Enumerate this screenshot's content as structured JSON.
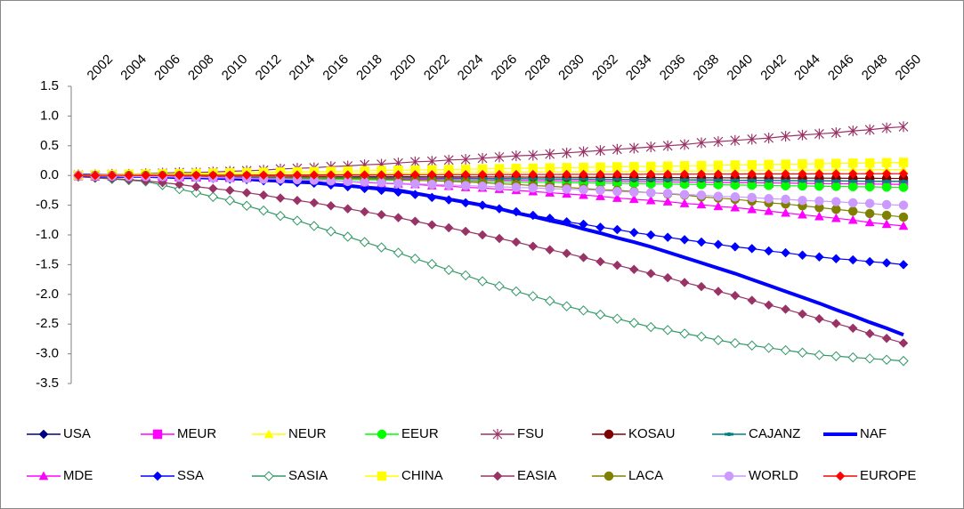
{
  "chart_data": {
    "type": "line",
    "x": [
      2001,
      2002,
      2003,
      2004,
      2005,
      2006,
      2007,
      2008,
      2009,
      2010,
      2011,
      2012,
      2013,
      2014,
      2015,
      2016,
      2017,
      2018,
      2019,
      2020,
      2021,
      2022,
      2023,
      2024,
      2025,
      2026,
      2027,
      2028,
      2029,
      2030,
      2031,
      2032,
      2033,
      2034,
      2035,
      2036,
      2037,
      2038,
      2039,
      2040,
      2041,
      2042,
      2043,
      2044,
      2045,
      2046,
      2047,
      2048,
      2049,
      2050
    ],
    "xlim": [
      2001,
      2050
    ],
    "xticks": [
      2002,
      2004,
      2006,
      2008,
      2010,
      2012,
      2014,
      2016,
      2018,
      2020,
      2022,
      2024,
      2026,
      2028,
      2030,
      2032,
      2034,
      2036,
      2038,
      2040,
      2042,
      2044,
      2046,
      2048,
      2050
    ],
    "ylim": [
      -3.5,
      1.5
    ],
    "yticks": [
      1.5,
      {
        "value": 1,
        "label": "1.0"
      },
      0.5,
      {
        "value": 0,
        "label": "0.0"
      },
      -0.5,
      {
        "value": -1,
        "label": "-1.0"
      },
      -1.5,
      {
        "value": -2,
        "label": "-2.0"
      },
      -2.5,
      {
        "value": -3,
        "label": "-3.0"
      },
      -3.5
    ],
    "grid": false,
    "legend": "bottom",
    "series": [
      {
        "name": "USA",
        "color": "#000080",
        "marker": "diamond",
        "values": [
          -0.002,
          -0.004,
          -0.006,
          -0.008,
          -0.01,
          -0.012,
          -0.014,
          -0.016,
          -0.018,
          -0.02,
          -0.022,
          -0.024,
          -0.026,
          -0.028,
          -0.03,
          -0.032,
          -0.034,
          -0.036,
          -0.038,
          -0.04,
          -0.042,
          -0.044,
          -0.046,
          -0.048,
          -0.05,
          -0.052,
          -0.054,
          -0.056,
          -0.058,
          -0.06,
          -0.062,
          -0.064,
          -0.066,
          -0.068,
          -0.07,
          -0.072,
          -0.074,
          -0.076,
          -0.078,
          -0.08,
          -0.082,
          -0.084,
          -0.086,
          -0.088,
          -0.09,
          -0.092,
          -0.094,
          -0.096,
          -0.098,
          -0.1
        ]
      },
      {
        "name": "MEUR",
        "color": "#ff00ff",
        "marker": "square",
        "values": [
          -0.003,
          -0.006,
          -0.009,
          -0.012,
          -0.015,
          -0.018,
          -0.021,
          -0.024,
          -0.027,
          -0.03,
          -0.033,
          -0.036,
          -0.039,
          -0.042,
          -0.045,
          -0.048,
          -0.051,
          -0.054,
          -0.057,
          -0.06,
          -0.063,
          -0.066,
          -0.069,
          -0.072,
          -0.075,
          -0.078,
          -0.081,
          -0.084,
          -0.087,
          -0.09,
          -0.093,
          -0.096,
          -0.099,
          -0.102,
          -0.105,
          -0.108,
          -0.111,
          -0.114,
          -0.117,
          -0.12,
          -0.123,
          -0.126,
          -0.129,
          -0.132,
          -0.135,
          -0.138,
          -0.141,
          -0.144,
          -0.147,
          -0.15
        ]
      },
      {
        "name": "NEUR",
        "color": "#ffff00",
        "marker": "triangle",
        "values": [
          0.002,
          0.004,
          0.006,
          0.008,
          0.01,
          0.012,
          0.014,
          0.016,
          0.018,
          0.02,
          0.022,
          0.024,
          0.026,
          0.028,
          0.03,
          0.032,
          0.034,
          0.036,
          0.038,
          0.04,
          0.042,
          0.044,
          0.046,
          0.048,
          0.05,
          0.052,
          0.054,
          0.056,
          0.058,
          0.06,
          0.062,
          0.064,
          0.066,
          0.068,
          0.07,
          0.072,
          0.074,
          0.076,
          0.078,
          0.08,
          0.082,
          0.084,
          0.086,
          0.088,
          0.09,
          0.092,
          0.094,
          0.096,
          0.098,
          0.1
        ]
      },
      {
        "name": "EEUR",
        "color": "#00ff00",
        "marker": "circle",
        "values": [
          -0.004,
          -0.008,
          -0.012,
          -0.016,
          -0.02,
          -0.024,
          -0.028,
          -0.032,
          -0.036,
          -0.04,
          -0.044,
          -0.048,
          -0.052,
          -0.056,
          -0.06,
          -0.064,
          -0.068,
          -0.072,
          -0.076,
          -0.08,
          -0.084,
          -0.088,
          -0.092,
          -0.096,
          -0.1,
          -0.104,
          -0.108,
          -0.112,
          -0.116,
          -0.12,
          -0.124,
          -0.128,
          -0.132,
          -0.136,
          -0.14,
          -0.144,
          -0.148,
          -0.152,
          -0.156,
          -0.16,
          -0.164,
          -0.168,
          -0.172,
          -0.176,
          -0.18,
          -0.184,
          -0.188,
          -0.192,
          -0.196,
          -0.2
        ]
      },
      {
        "name": "FSU",
        "color": "#993366",
        "marker": "star",
        "values": [
          0.01,
          0.01,
          0.02,
          0.02,
          0.03,
          0.04,
          0.05,
          0.05,
          0.06,
          0.07,
          0.08,
          0.09,
          0.11,
          0.12,
          0.13,
          0.15,
          0.16,
          0.18,
          0.19,
          0.21,
          0.23,
          0.24,
          0.26,
          0.27,
          0.29,
          0.31,
          0.33,
          0.34,
          0.36,
          0.38,
          0.4,
          0.42,
          0.44,
          0.46,
          0.48,
          0.5,
          0.52,
          0.55,
          0.57,
          0.59,
          0.61,
          0.63,
          0.66,
          0.68,
          0.7,
          0.72,
          0.75,
          0.77,
          0.8,
          0.82
        ]
      },
      {
        "name": "KOSAU",
        "color": "#800000",
        "marker": "circle",
        "values": [
          -0.001,
          -0.002,
          -0.003,
          -0.004,
          -0.005,
          -0.006,
          -0.007,
          -0.008,
          -0.009,
          -0.01,
          -0.011,
          -0.012,
          -0.013,
          -0.014,
          -0.015,
          -0.016,
          -0.017,
          -0.018,
          -0.019,
          -0.02,
          -0.021,
          -0.022,
          -0.023,
          -0.024,
          -0.025,
          -0.026,
          -0.027,
          -0.028,
          -0.029,
          -0.03,
          -0.031,
          -0.032,
          -0.033,
          -0.034,
          -0.035,
          -0.036,
          -0.037,
          -0.038,
          -0.039,
          -0.04,
          -0.041,
          -0.042,
          -0.043,
          -0.044,
          -0.045,
          -0.046,
          -0.047,
          -0.048,
          -0.049,
          -0.05
        ]
      },
      {
        "name": "CAJANZ",
        "color": "#008080",
        "marker": "plus",
        "values": [
          -0.002,
          -0.004,
          -0.006,
          -0.008,
          -0.01,
          -0.012,
          -0.014,
          -0.016,
          -0.018,
          -0.02,
          -0.022,
          -0.024,
          -0.026,
          -0.028,
          -0.03,
          -0.032,
          -0.034,
          -0.036,
          -0.038,
          -0.04,
          -0.042,
          -0.044,
          -0.046,
          -0.048,
          -0.05,
          -0.052,
          -0.054,
          -0.056,
          -0.058,
          -0.06,
          -0.062,
          -0.064,
          -0.066,
          -0.068,
          -0.07,
          -0.072,
          -0.074,
          -0.076,
          -0.078,
          -0.08,
          -0.082,
          -0.084,
          -0.086,
          -0.088,
          -0.09,
          -0.092,
          -0.094,
          -0.096,
          -0.098,
          -0.1
        ]
      },
      {
        "name": "NAF",
        "color": "#0000ff",
        "values": [
          0,
          0,
          -0.01,
          -0.01,
          -0.01,
          -0.02,
          -0.03,
          -0.03,
          -0.04,
          -0.05,
          -0.06,
          -0.08,
          -0.09,
          -0.11,
          -0.12,
          -0.15,
          -0.17,
          -0.2,
          -0.22,
          -0.25,
          -0.3,
          -0.35,
          -0.4,
          -0.45,
          -0.5,
          -0.56,
          -0.63,
          -0.69,
          -0.76,
          -0.82,
          -0.9,
          -0.97,
          -1.05,
          -1.12,
          -1.2,
          -1.29,
          -1.38,
          -1.47,
          -1.56,
          -1.65,
          -1.75,
          -1.85,
          -1.95,
          -2.05,
          -2.15,
          -2.26,
          -2.36,
          -2.47,
          -2.57,
          -2.68
        ]
      },
      {
        "name": "MDE",
        "color": "#ff00ff",
        "marker": "triangle",
        "values": [
          0,
          0,
          -0.01,
          -0.01,
          -0.01,
          -0.01,
          -0.02,
          -0.02,
          -0.03,
          -0.03,
          -0.04,
          -0.05,
          -0.06,
          -0.07,
          -0.08,
          -0.09,
          -0.1,
          -0.12,
          -0.13,
          -0.14,
          -0.15,
          -0.17,
          -0.18,
          -0.2,
          -0.21,
          -0.23,
          -0.25,
          -0.27,
          -0.29,
          -0.31,
          -0.33,
          -0.35,
          -0.38,
          -0.4,
          -0.42,
          -0.44,
          -0.47,
          -0.49,
          -0.52,
          -0.54,
          -0.57,
          -0.6,
          -0.63,
          -0.66,
          -0.69,
          -0.72,
          -0.75,
          -0.79,
          -0.82,
          -0.85
        ]
      },
      {
        "name": "SSA",
        "color": "#0000ff",
        "marker": "diamond",
        "values": [
          0,
          -0.01,
          -0.01,
          -0.02,
          -0.02,
          -0.03,
          -0.04,
          -0.04,
          -0.05,
          -0.06,
          -0.07,
          -0.09,
          -0.1,
          -0.12,
          -0.13,
          -0.16,
          -0.19,
          -0.22,
          -0.25,
          -0.28,
          -0.32,
          -0.37,
          -0.41,
          -0.46,
          -0.5,
          -0.56,
          -0.61,
          -0.67,
          -0.72,
          -0.78,
          -0.82,
          -0.87,
          -0.91,
          -0.96,
          -1.0,
          -1.04,
          -1.08,
          -1.12,
          -1.16,
          -1.2,
          -1.23,
          -1.27,
          -1.3,
          -1.34,
          -1.37,
          -1.4,
          -1.42,
          -1.45,
          -1.47,
          -1.5
        ]
      },
      {
        "name": "SASIA",
        "color": "#339966",
        "marker": "hollow-diamond",
        "values": [
          -0.02,
          -0.04,
          -0.06,
          -0.08,
          -0.1,
          -0.16,
          -0.23,
          -0.29,
          -0.36,
          -0.42,
          -0.51,
          -0.59,
          -0.68,
          -0.76,
          -0.85,
          -0.94,
          -1.03,
          -1.12,
          -1.21,
          -1.3,
          -1.4,
          -1.49,
          -1.59,
          -1.68,
          -1.78,
          -1.86,
          -1.95,
          -2.03,
          -2.11,
          -2.2,
          -2.27,
          -2.34,
          -2.41,
          -2.48,
          -2.55,
          -2.6,
          -2.66,
          -2.71,
          -2.77,
          -2.82,
          -2.86,
          -2.9,
          -2.94,
          -2.98,
          -3.02,
          -3.04,
          -3.06,
          -3.08,
          -3.1,
          -3.12
        ]
      },
      {
        "name": "CHINA",
        "color": "#ffff00",
        "marker": "square",
        "values": [
          0.004,
          0.009,
          0.013,
          0.018,
          0.022,
          0.026,
          0.031,
          0.035,
          0.04,
          0.044,
          0.048,
          0.053,
          0.057,
          0.062,
          0.066,
          0.07,
          0.075,
          0.079,
          0.084,
          0.088,
          0.092,
          0.097,
          0.101,
          0.106,
          0.11,
          0.114,
          0.119,
          0.123,
          0.128,
          0.132,
          0.136,
          0.141,
          0.145,
          0.15,
          0.154,
          0.158,
          0.163,
          0.167,
          0.172,
          0.176,
          0.18,
          0.185,
          0.189,
          0.194,
          0.198,
          0.202,
          0.207,
          0.211,
          0.216,
          0.22
        ]
      },
      {
        "name": "EASIA",
        "color": "#993366",
        "marker": "diamond",
        "values": [
          -0.02,
          -0.04,
          -0.05,
          -0.07,
          -0.09,
          -0.12,
          -0.15,
          -0.19,
          -0.22,
          -0.25,
          -0.29,
          -0.33,
          -0.38,
          -0.42,
          -0.46,
          -0.51,
          -0.56,
          -0.61,
          -0.66,
          -0.71,
          -0.77,
          -0.83,
          -0.88,
          -0.94,
          -1.0,
          -1.06,
          -1.12,
          -1.19,
          -1.25,
          -1.31,
          -1.38,
          -1.45,
          -1.51,
          -1.58,
          -1.65,
          -1.72,
          -1.8,
          -1.87,
          -1.95,
          -2.02,
          -2.1,
          -2.18,
          -2.25,
          -2.33,
          -2.41,
          -2.49,
          -2.57,
          -2.66,
          -2.74,
          -2.82
        ]
      },
      {
        "name": "LACA",
        "color": "#808000",
        "marker": "circle",
        "values": [
          0,
          0,
          0,
          0,
          0,
          0,
          0,
          -0.01,
          -0.01,
          -0.01,
          -0.01,
          -0.02,
          -0.02,
          -0.03,
          -0.03,
          -0.04,
          -0.05,
          -0.05,
          -0.06,
          -0.07,
          -0.08,
          -0.09,
          -0.1,
          -0.11,
          -0.12,
          -0.14,
          -0.15,
          -0.17,
          -0.18,
          -0.2,
          -0.22,
          -0.24,
          -0.25,
          -0.27,
          -0.29,
          -0.31,
          -0.33,
          -0.36,
          -0.38,
          -0.4,
          -0.43,
          -0.46,
          -0.48,
          -0.51,
          -0.54,
          -0.57,
          -0.6,
          -0.64,
          -0.67,
          -0.7
        ]
      },
      {
        "name": "WORLD",
        "color": "#cc99ff",
        "marker": "circle",
        "values": [
          0,
          -0.01,
          -0.01,
          -0.02,
          -0.02,
          -0.02,
          -0.03,
          -0.03,
          -0.04,
          -0.04,
          -0.05,
          -0.06,
          -0.06,
          -0.07,
          -0.08,
          -0.09,
          -0.1,
          -0.11,
          -0.12,
          -0.13,
          -0.14,
          -0.15,
          -0.16,
          -0.17,
          -0.18,
          -0.19,
          -0.2,
          -0.21,
          -0.22,
          -0.23,
          -0.24,
          -0.25,
          -0.27,
          -0.28,
          -0.29,
          -0.3,
          -0.32,
          -0.33,
          -0.35,
          -0.36,
          -0.37,
          -0.39,
          -0.4,
          -0.42,
          -0.43,
          -0.44,
          -0.46,
          -0.47,
          -0.49,
          -0.5
        ]
      },
      {
        "name": "EUROPE",
        "color": "#ff0000",
        "marker": "diamond",
        "values": [
          0.001,
          0.001,
          0.002,
          0.002,
          0.003,
          0.004,
          0.004,
          0.005,
          0.005,
          0.006,
          0.007,
          0.007,
          0.008,
          0.008,
          0.009,
          0.01,
          0.01,
          0.011,
          0.011,
          0.012,
          0.013,
          0.013,
          0.014,
          0.014,
          0.015,
          0.016,
          0.016,
          0.017,
          0.017,
          0.018,
          0.019,
          0.019,
          0.02,
          0.02,
          0.021,
          0.022,
          0.022,
          0.023,
          0.023,
          0.024,
          0.025,
          0.025,
          0.026,
          0.026,
          0.027,
          0.028,
          0.028,
          0.029,
          0.029,
          0.03
        ]
      }
    ]
  }
}
